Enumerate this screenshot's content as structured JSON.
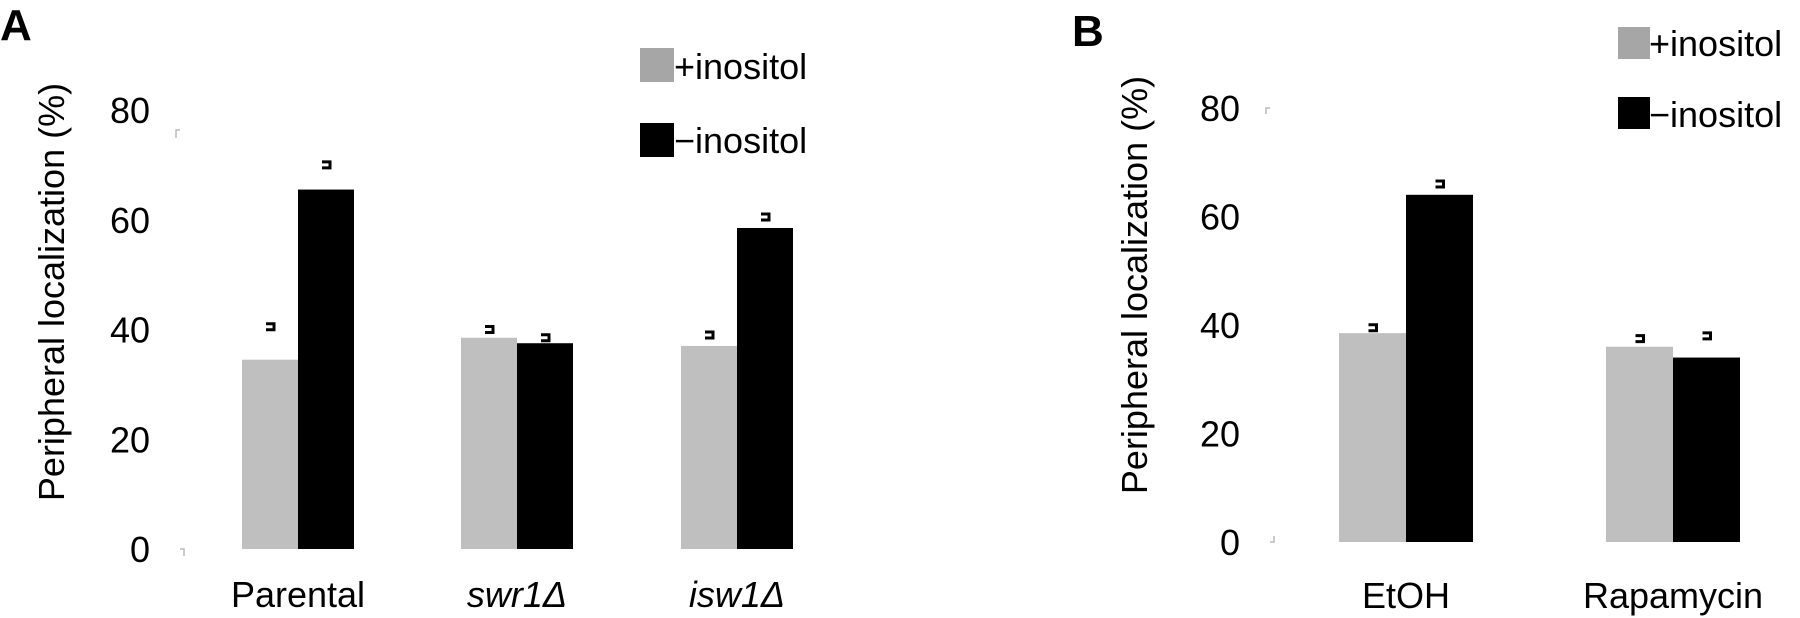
{
  "legend": {
    "plus_label": "+inositol",
    "minus_label": "−inositol"
  },
  "colors": {
    "plus": "#bfbfbf",
    "minus": "#000000",
    "error": "#000000"
  },
  "chart_data": [
    {
      "panel": "A",
      "type": "bar",
      "ylabel": "Peripheral localization (%)",
      "ylim": [
        0,
        80
      ],
      "yticks": [
        0,
        20,
        40,
        60,
        80
      ],
      "categories": [
        {
          "name": "Parental",
          "italic": false
        },
        {
          "name": "swr1Δ",
          "italic": true
        },
        {
          "name": "isw1Δ",
          "italic": true
        }
      ],
      "series": [
        {
          "name": "+inositol",
          "values": [
            34.5,
            38.5,
            37
          ],
          "errors": [
            6,
            1.5,
            2
          ]
        },
        {
          "name": "−inositol",
          "values": [
            65.5,
            37.5,
            58.5
          ],
          "errors": [
            4.5,
            1,
            2
          ]
        }
      ],
      "legend_position": "top-right",
      "grid": false
    },
    {
      "panel": "B",
      "type": "bar",
      "ylabel": "Peripheral localization (%)",
      "ylim": [
        0,
        80
      ],
      "yticks": [
        0,
        20,
        40,
        60,
        80
      ],
      "categories": [
        {
          "name": "EtOH",
          "italic": false
        },
        {
          "name": "Rapamycin",
          "italic": false
        }
      ],
      "series": [
        {
          "name": "+inositol",
          "values": [
            38.5,
            36
          ],
          "errors": [
            1,
            1.5
          ]
        },
        {
          "name": "−inositol",
          "values": [
            64,
            34
          ],
          "errors": [
            2,
            4
          ]
        }
      ],
      "legend_position": "top-right",
      "grid": false
    }
  ]
}
